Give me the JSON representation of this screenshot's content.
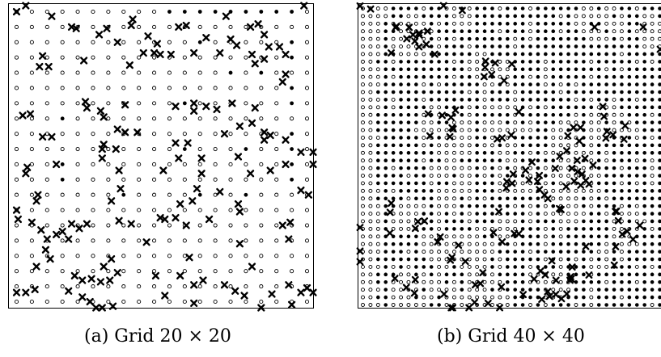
{
  "figures": [
    {
      "id": "a",
      "caption": "(a) Grid 20 × 20",
      "grid_size": 20,
      "filled_nodes": [
        [
          10,
          0
        ],
        [
          11,
          0
        ],
        [
          12,
          0
        ],
        [
          13,
          0
        ],
        [
          14,
          0
        ],
        [
          15,
          0
        ],
        [
          16,
          0
        ],
        [
          17,
          0
        ],
        [
          18,
          0
        ],
        [
          12,
          2
        ],
        [
          18,
          2
        ],
        [
          18,
          3
        ],
        [
          18,
          5
        ],
        [
          18,
          6
        ],
        [
          11,
          6
        ],
        [
          3,
          7
        ],
        [
          18,
          8
        ],
        [
          18,
          9
        ],
        [
          18,
          10
        ],
        [
          3,
          10
        ],
        [
          3,
          11
        ],
        [
          12,
          12
        ],
        [
          15,
          12
        ],
        [
          18,
          11
        ],
        [
          15,
          9
        ],
        [
          11,
          9
        ],
        [
          14,
          4
        ],
        [
          16,
          4
        ],
        [
          7,
          12
        ]
      ],
      "cross_markers": [
        [
          0,
          0
        ],
        [
          0.6,
          -0.5
        ],
        [
          2.3,
          0.3
        ],
        [
          3.6,
          1.0
        ],
        [
          3.9,
          1.1
        ],
        [
          5.4,
          1.5
        ],
        [
          5.9,
          1.1
        ],
        [
          6.6,
          2.0
        ],
        [
          7.5,
          0.9
        ],
        [
          7.6,
          0.5
        ],
        [
          8.6,
          1.6
        ],
        [
          9.0,
          2.7
        ],
        [
          9.2,
          2.1
        ],
        [
          10.6,
          1.0
        ],
        [
          11.1,
          0.9
        ],
        [
          13.7,
          0.3
        ],
        [
          14.0,
          1.8
        ],
        [
          15.3,
          1.0
        ],
        [
          15.8,
          0.8
        ],
        [
          16.2,
          1.5
        ],
        [
          16.5,
          2.3
        ],
        [
          17.2,
          2.3
        ],
        [
          18.8,
          -0.7
        ],
        [
          1.7,
          2.9
        ],
        [
          1.5,
          3.6
        ],
        [
          2.1,
          3.6
        ],
        [
          4.4,
          3.2
        ],
        [
          7.4,
          3.5
        ],
        [
          8.3,
          2.7
        ],
        [
          9.4,
          2.8
        ],
        [
          10.1,
          2.8
        ],
        [
          11.6,
          2.7
        ],
        [
          12.4,
          1.7
        ],
        [
          13.3,
          2.7
        ],
        [
          14.4,
          2.2
        ],
        [
          15.4,
          2.8
        ],
        [
          15.6,
          3.4
        ],
        [
          16.2,
          3.1
        ],
        [
          17.6,
          2.8
        ],
        [
          17.6,
          4.1
        ],
        [
          17.4,
          4.6
        ],
        [
          0.4,
          6.8
        ],
        [
          0.9,
          6.7
        ],
        [
          4.5,
          5.9
        ],
        [
          4.6,
          6.3
        ],
        [
          5.5,
          6.5
        ],
        [
          5.7,
          6.9
        ],
        [
          6.6,
          7.7
        ],
        [
          7.1,
          6.1
        ],
        [
          7.1,
          7.9
        ],
        [
          7.9,
          7.9
        ],
        [
          10.4,
          6.2
        ],
        [
          11.6,
          6.0
        ],
        [
          11.6,
          6.5
        ],
        [
          12.4,
          6.2
        ],
        [
          13.1,
          6.4
        ],
        [
          14.1,
          6.0
        ],
        [
          15.6,
          6.3
        ],
        [
          14.6,
          7.5
        ],
        [
          16.2,
          7.9
        ],
        [
          16.6,
          8.1
        ],
        [
          15.4,
          7.3
        ],
        [
          1.7,
          8.2
        ],
        [
          2.3,
          8.2
        ],
        [
          5.7,
          8.7
        ],
        [
          5.6,
          9.0
        ],
        [
          6.5,
          9.0
        ],
        [
          10.4,
          8.6
        ],
        [
          11.2,
          8.6
        ],
        [
          13.6,
          8.0
        ],
        [
          16.2,
          8.4
        ],
        [
          17.6,
          8.4
        ],
        [
          18.6,
          9.2
        ],
        [
          19.5,
          9.2
        ],
        [
          0.7,
          10.2
        ],
        [
          2.6,
          10.0
        ],
        [
          5.6,
          9.6
        ],
        [
          6.7,
          10.4
        ],
        [
          9.6,
          10.4
        ],
        [
          10.6,
          9.6
        ],
        [
          12.1,
          9.6
        ],
        [
          12.1,
          10.6
        ],
        [
          14.5,
          9.5
        ],
        [
          15.3,
          10.6
        ],
        [
          16.6,
          10.4
        ],
        [
          17.6,
          10.0
        ],
        [
          19.5,
          10.0
        ],
        [
          0.6,
          10.6
        ],
        [
          1.4,
          12.0
        ],
        [
          1.3,
          12.4
        ],
        [
          6.8,
          11.6
        ],
        [
          6.2,
          12.4
        ],
        [
          10.7,
          12.6
        ],
        [
          11.5,
          12.4
        ],
        [
          11.8,
          11.6
        ],
        [
          13.3,
          11.8
        ],
        [
          14.5,
          12.6
        ],
        [
          18.6,
          11.7
        ],
        [
          19.1,
          12.0
        ],
        [
          0.0,
          13.0
        ],
        [
          0.1,
          13.6
        ],
        [
          1.0,
          13.8
        ],
        [
          1.6,
          14.3
        ],
        [
          2.0,
          14.9
        ],
        [
          2.6,
          14.6
        ],
        [
          3.0,
          14.4
        ],
        [
          3.4,
          14.9
        ],
        [
          3.6,
          13.9
        ],
        [
          4.1,
          14.2
        ],
        [
          4.6,
          13.9
        ],
        [
          6.7,
          13.7
        ],
        [
          7.5,
          13.9
        ],
        [
          9.4,
          13.5
        ],
        [
          9.7,
          13.6
        ],
        [
          10.4,
          13.5
        ],
        [
          11.1,
          14.0
        ],
        [
          12.6,
          13.6
        ],
        [
          14.6,
          13.1
        ],
        [
          17.4,
          14.0
        ],
        [
          17.9,
          13.8
        ],
        [
          1.9,
          15.6
        ],
        [
          2.2,
          16.2
        ],
        [
          1.3,
          16.7
        ],
        [
          5.7,
          16.7
        ],
        [
          6.2,
          16.2
        ],
        [
          8.5,
          15.1
        ],
        [
          11.3,
          16.1
        ],
        [
          14.6,
          15.2
        ],
        [
          15.4,
          16.7
        ],
        [
          17.8,
          14.9
        ],
        [
          3.8,
          17.3
        ],
        [
          4.3,
          17.6
        ],
        [
          4.9,
          17.5
        ],
        [
          5.5,
          17.7
        ],
        [
          6.1,
          17.6
        ],
        [
          6.6,
          17.1
        ],
        [
          9.1,
          17.3
        ],
        [
          10.7,
          17.3
        ],
        [
          11.6,
          17.9
        ],
        [
          12.2,
          17.6
        ],
        [
          13.6,
          17.9
        ],
        [
          14.3,
          18.3
        ],
        [
          14.9,
          18.6
        ],
        [
          16.7,
          18.5
        ],
        [
          17.8,
          17.9
        ],
        [
          18.6,
          18.4
        ],
        [
          19.6,
          18.4
        ],
        [
          19.0,
          18.1
        ],
        [
          0.0,
          18.4
        ],
        [
          0.6,
          18.4
        ],
        [
          1.2,
          18.2
        ],
        [
          3.4,
          18.3
        ],
        [
          4.3,
          18.7
        ],
        [
          4.8,
          19.0
        ],
        [
          5.2,
          19.6
        ],
        [
          5.6,
          19.4
        ],
        [
          6.3,
          19.3
        ],
        [
          9.7,
          18.6
        ],
        [
          11.6,
          19.1
        ],
        [
          16.0,
          19.9
        ],
        [
          18.0,
          19.2
        ]
      ],
      "cross_seed": 7
    },
    {
      "id": "b",
      "caption": "(b) Grid 40 × 40",
      "grid_size": 40
    }
  ]
}
